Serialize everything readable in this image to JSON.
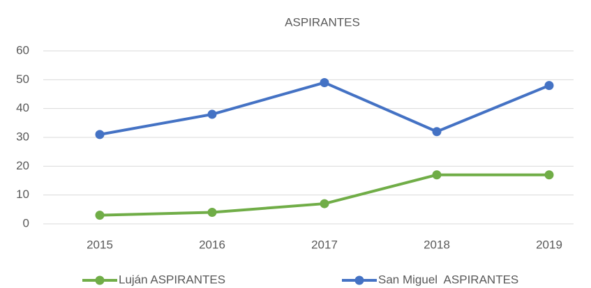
{
  "chart_data": {
    "type": "line",
    "title": "ASPIRANTES",
    "categories": [
      "2015",
      "2016",
      "2017",
      "2018",
      "2019"
    ],
    "series": [
      {
        "name": "Luján ASPIRANTES",
        "color": "#70ad47",
        "values": [
          3,
          4,
          7,
          17,
          17
        ]
      },
      {
        "name": "San Miguel  ASPIRANTES",
        "color": "#4472c4",
        "values": [
          31,
          38,
          49,
          32,
          48
        ]
      }
    ],
    "ylim": [
      0,
      60
    ],
    "yticks": [
      0,
      10,
      20,
      30,
      40,
      50,
      60
    ],
    "grid": true,
    "legend": "bottom"
  }
}
